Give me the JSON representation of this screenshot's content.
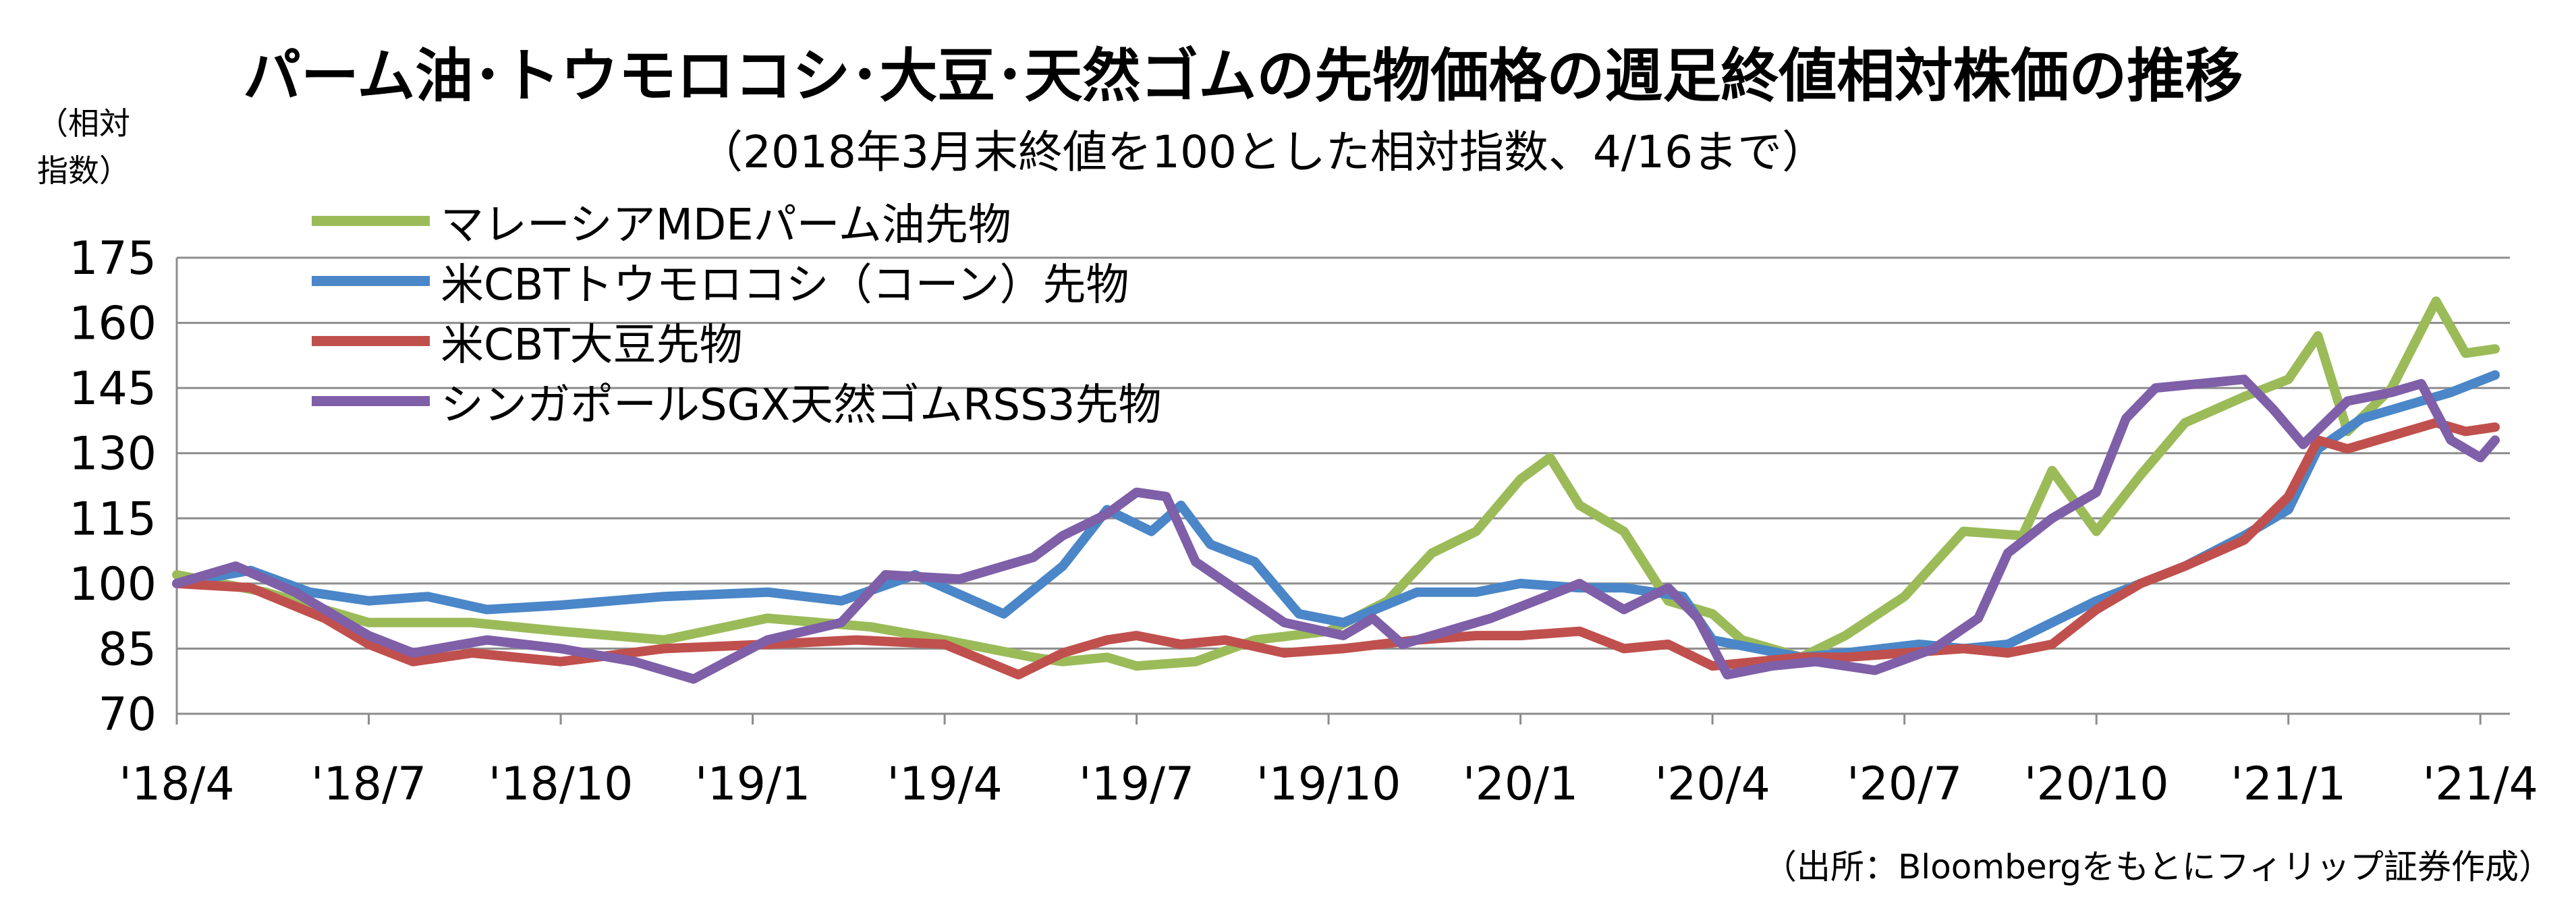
{
  "chart_data": {
    "type": "line",
    "title": "パーム油･トウモロコシ･大豆･天然ゴムの先物価格の週足終値相対株価の推移",
    "subtitle": "（2018年3月末終値を100とした相対指数、4/16まで）",
    "ylabel": "（相対指数）",
    "source": "（出所：Bloombergをもとにフィリップ証券作成）",
    "ylim": [
      70,
      175
    ],
    "yticks": [
      "70",
      "85",
      "100",
      "115",
      "130",
      "145",
      "160",
      "175"
    ],
    "ytick_values": [
      70,
      85,
      100,
      115,
      130,
      145,
      160,
      175
    ],
    "xlim": [
      0,
      158
    ],
    "xtick_labels": [
      "'18/4",
      "'18/7",
      "'18/10",
      "'19/1",
      "'19/4",
      "'19/7",
      "'19/10",
      "'20/1",
      "'20/4",
      "'20/7",
      "'20/10",
      "'21/1",
      "'21/4"
    ],
    "xtick_positions": [
      0,
      13,
      26,
      39,
      52,
      65,
      78,
      91,
      104,
      117,
      130,
      143,
      156
    ],
    "grid": true,
    "legend_position": "top-left",
    "series": [
      {
        "name": "マレーシアMDEパーム油先物",
        "color": "#9bbb59",
        "x": [
          0,
          6,
          13,
          20,
          26,
          33,
          40,
          47,
          52,
          58,
          60,
          63,
          65,
          69,
          73,
          78,
          82,
          85,
          88,
          91,
          93,
          95,
          98,
          101,
          104,
          106,
          108,
          110,
          113,
          117,
          121,
          125,
          127,
          130,
          133,
          136,
          140,
          143,
          145,
          147,
          150,
          153,
          155,
          157
        ],
        "y": [
          102,
          98,
          91,
          91,
          89,
          87,
          92,
          90,
          87,
          83,
          82,
          83,
          81,
          82,
          87,
          89,
          96,
          107,
          112,
          124,
          129,
          118,
          112,
          96,
          93,
          87,
          85,
          83,
          88,
          97,
          112,
          111,
          126,
          112,
          125,
          137,
          143,
          147,
          157,
          135,
          145,
          165,
          153,
          154
        ]
      },
      {
        "name": "米CBTトウモロコシ（コーン）先物",
        "color": "#4a86c8",
        "x": [
          0,
          5,
          9,
          13,
          17,
          21,
          26,
          33,
          40,
          45,
          50,
          56,
          60,
          63,
          66,
          68,
          70,
          73,
          76,
          79,
          84,
          88,
          91,
          95,
          98,
          102,
          104,
          107,
          110,
          113,
          118,
          121,
          124,
          127,
          130,
          133,
          136,
          140,
          143,
          145,
          148,
          151,
          154,
          157
        ],
        "y": [
          100,
          103,
          98,
          96,
          97,
          94,
          95,
          97,
          98,
          96,
          102,
          93,
          104,
          117,
          112,
          118,
          109,
          105,
          93,
          91,
          98,
          98,
          100,
          99,
          99,
          97,
          87,
          85,
          83,
          84,
          86,
          85,
          86,
          91,
          96,
          100,
          104,
          111,
          117,
          131,
          138,
          141,
          144,
          148
        ]
      },
      {
        "name": "米CBT大豆先物",
        "color": "#c0504d",
        "x": [
          0,
          5,
          10,
          13,
          16,
          20,
          26,
          33,
          40,
          46,
          52,
          57,
          60,
          63,
          65,
          68,
          71,
          75,
          79,
          84,
          88,
          91,
          95,
          98,
          101,
          104,
          107,
          110,
          113,
          117,
          121,
          124,
          127,
          130,
          133,
          136,
          140,
          143,
          145,
          147,
          150,
          153,
          155,
          157
        ],
        "y": [
          100,
          99,
          92,
          86,
          82,
          84,
          82,
          85,
          86,
          87,
          86,
          79,
          84,
          87,
          88,
          86,
          87,
          84,
          85,
          87,
          88,
          88,
          89,
          85,
          86,
          81,
          82,
          83,
          83,
          84,
          85,
          84,
          86,
          94,
          100,
          104,
          110,
          120,
          133,
          131,
          134,
          137,
          135,
          136
        ]
      },
      {
        "name": "シンガポールSGX天然ゴムRSS3先物",
        "color": "#7f5fa8",
        "x": [
          0,
          4,
          8,
          13,
          16,
          21,
          26,
          31,
          35,
          40,
          45,
          48,
          53,
          58,
          60,
          63,
          65,
          67,
          69,
          72,
          75,
          79,
          81,
          83,
          86,
          89,
          92,
          95,
          98,
          101,
          103,
          105,
          108,
          111,
          115,
          119,
          122,
          124,
          127,
          130,
          132,
          134,
          137,
          140,
          142,
          144,
          147,
          150,
          152,
          154,
          156,
          157
        ],
        "y": [
          100,
          104,
          98,
          88,
          84,
          87,
          85,
          82,
          78,
          87,
          91,
          102,
          101,
          106,
          111,
          116,
          121,
          120,
          105,
          98,
          91,
          88,
          92,
          86,
          89,
          92,
          96,
          100,
          94,
          99,
          92,
          79,
          81,
          82,
          80,
          85,
          92,
          107,
          115,
          121,
          138,
          145,
          146,
          147,
          140,
          132,
          142,
          144,
          146,
          133,
          129,
          133
        ]
      }
    ]
  }
}
